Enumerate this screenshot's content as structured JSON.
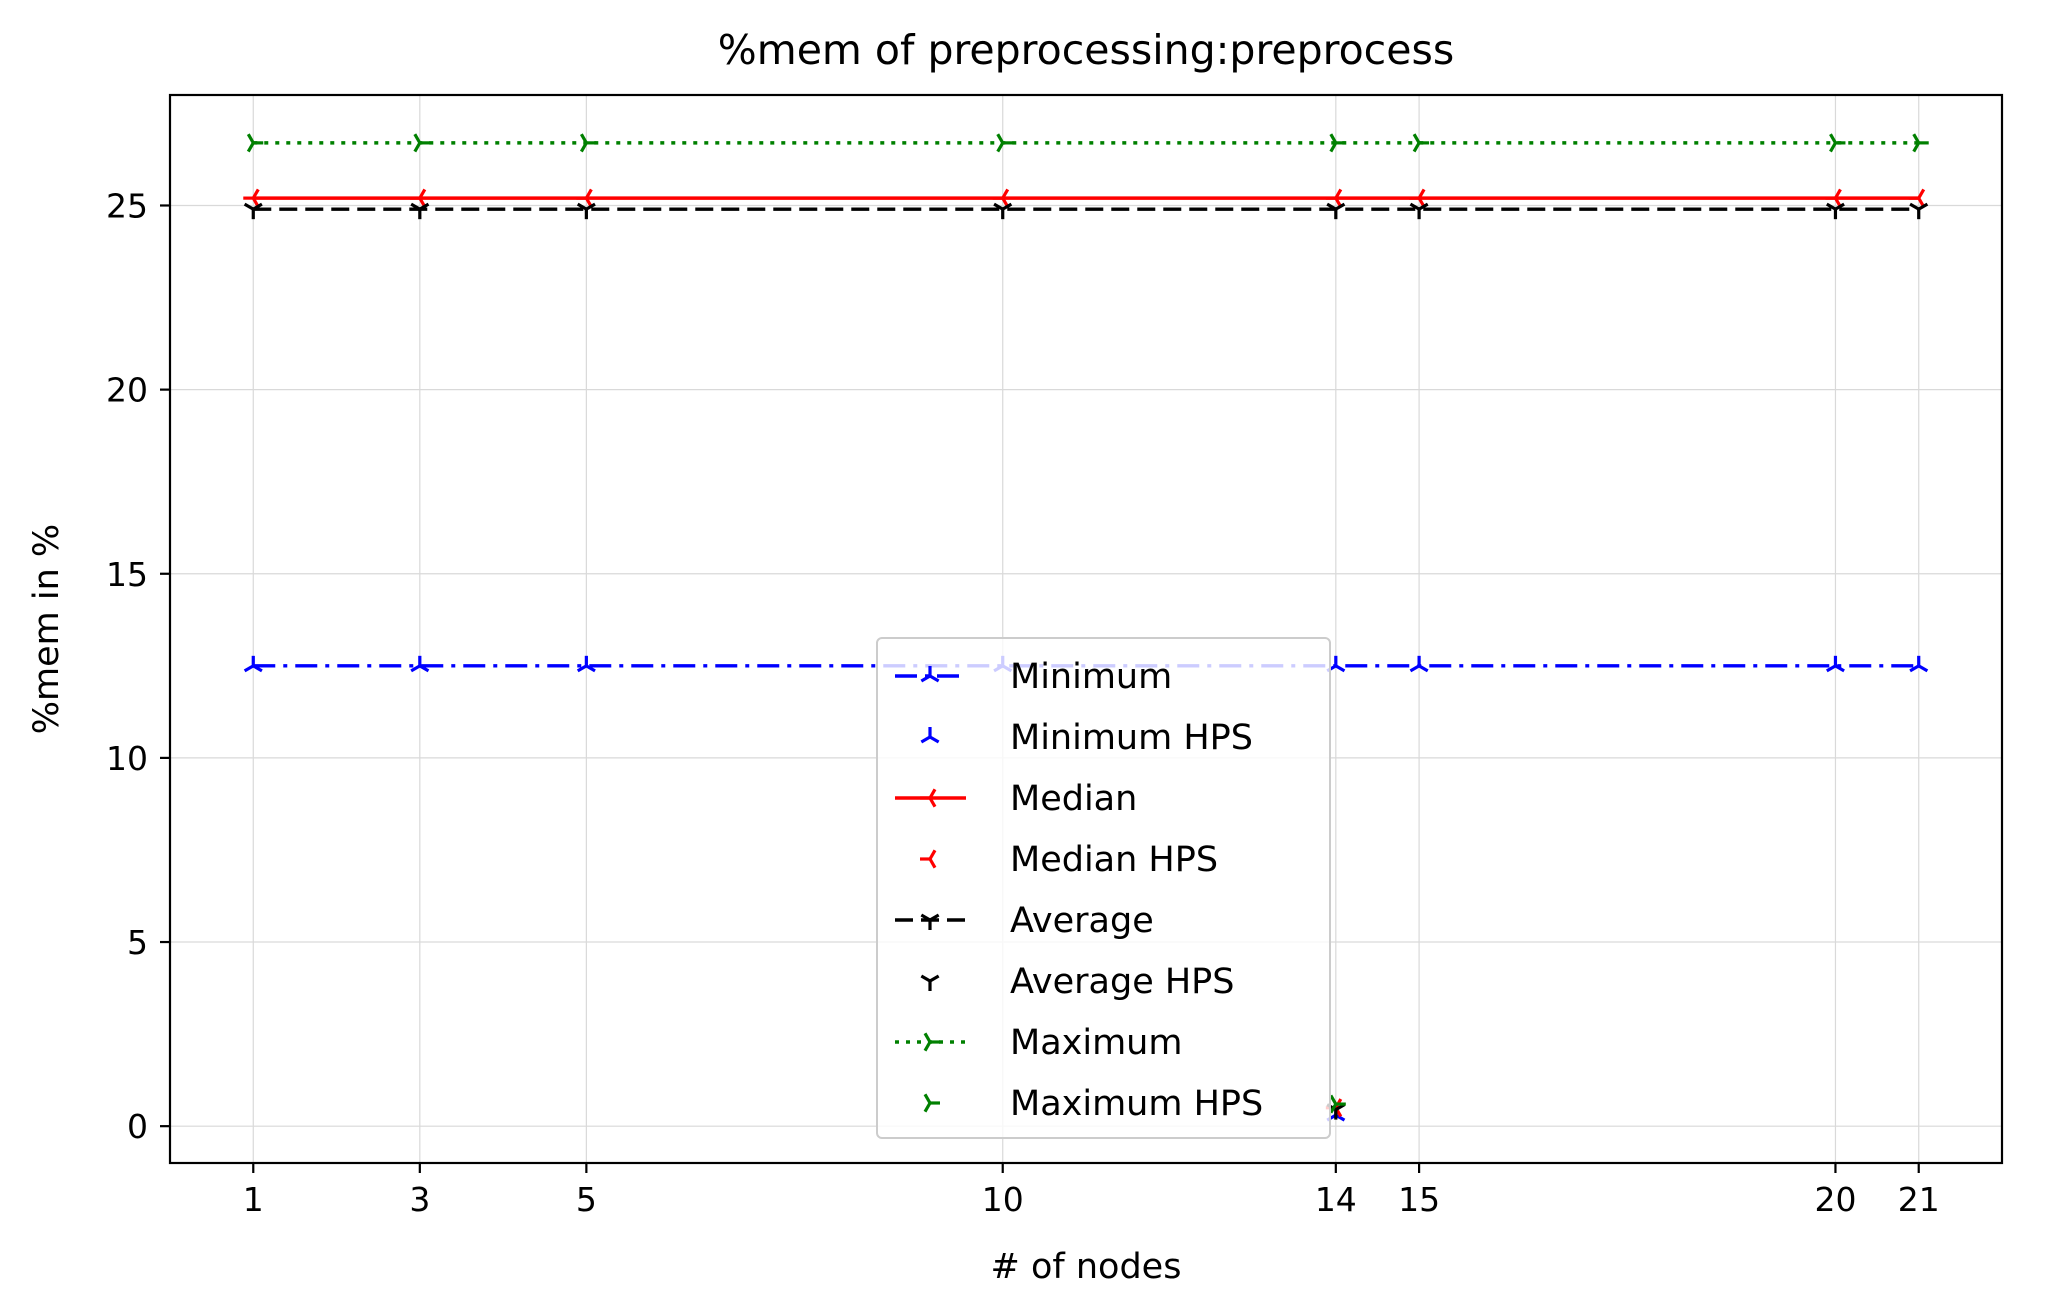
{
  "chart_data": {
    "type": "line",
    "title": "%mem of preprocessing:preprocess",
    "xlabel": "# of nodes",
    "ylabel": "%mem in %",
    "xlim": [
      0,
      22
    ],
    "ylim": [
      -1,
      28
    ],
    "x_ticks": [
      1,
      3,
      5,
      10,
      14,
      15,
      20,
      21
    ],
    "y_ticks": [
      0,
      5,
      10,
      15,
      20,
      25
    ],
    "grid": true,
    "legend_position": "lower-center",
    "series": [
      {
        "name": "Minimum",
        "color": "#0000ff",
        "line_style": "dash-dot",
        "marker": "tri-up",
        "x": [
          1,
          3,
          5,
          10,
          14,
          15,
          20,
          21
        ],
        "y": [
          12.5,
          12.5,
          12.5,
          12.5,
          12.5,
          12.5,
          12.5,
          12.5
        ]
      },
      {
        "name": "Minimum HPS",
        "color": "#0000ff",
        "line_style": "none",
        "marker": "tri-up",
        "x": [
          14
        ],
        "y": [
          0.3
        ]
      },
      {
        "name": "Median",
        "color": "#ff0000",
        "line_style": "solid",
        "marker": "tri-right",
        "x": [
          1,
          3,
          5,
          10,
          14,
          15,
          20,
          21
        ],
        "y": [
          25.2,
          25.2,
          25.2,
          25.2,
          25.2,
          25.2,
          25.2,
          25.2
        ]
      },
      {
        "name": "Median HPS",
        "color": "#ff0000",
        "line_style": "none",
        "marker": "tri-right",
        "x": [
          14
        ],
        "y": [
          0.5
        ]
      },
      {
        "name": "Average",
        "color": "#000000",
        "line_style": "dashed",
        "marker": "tri-down",
        "x": [
          1,
          3,
          5,
          10,
          14,
          15,
          20,
          21
        ],
        "y": [
          24.9,
          24.9,
          24.9,
          24.9,
          24.9,
          24.9,
          24.9,
          24.9
        ]
      },
      {
        "name": "Average HPS",
        "color": "#000000",
        "line_style": "none",
        "marker": "tri-down",
        "x": [
          14
        ],
        "y": [
          0.45
        ]
      },
      {
        "name": "Maximum",
        "color": "#008000",
        "line_style": "dotted",
        "marker": "tri-left",
        "x": [
          1,
          3,
          5,
          10,
          14,
          15,
          20,
          21
        ],
        "y": [
          26.7,
          26.7,
          26.7,
          26.7,
          26.7,
          26.7,
          26.7,
          26.7
        ]
      },
      {
        "name": "Maximum HPS",
        "color": "#008000",
        "line_style": "none",
        "marker": "tri-left",
        "x": [
          14
        ],
        "y": [
          0.6
        ]
      }
    ]
  }
}
